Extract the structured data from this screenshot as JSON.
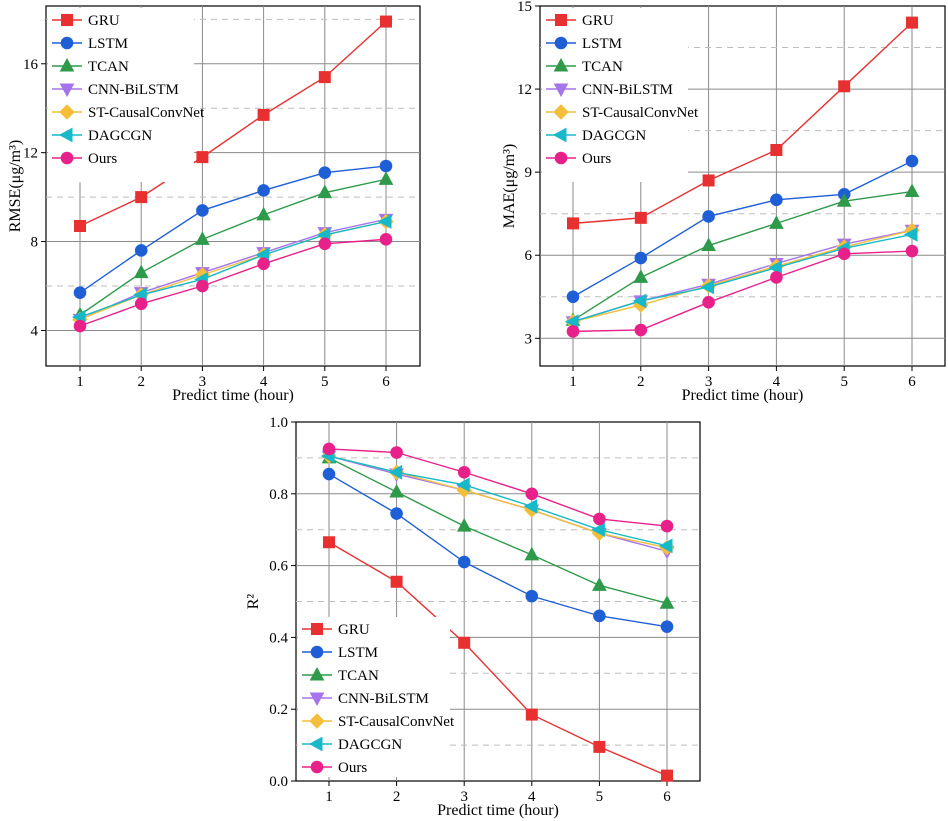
{
  "chart_data": [
    {
      "type": "line",
      "id": "rmse",
      "xlabel": "Predict time (hour)",
      "ylabel": "RMSE(μg/m³)",
      "x": [
        1,
        2,
        3,
        4,
        5,
        6
      ],
      "xticks": [
        "1",
        "2",
        "3",
        "4",
        "5",
        "6"
      ],
      "ylim": [
        2.4,
        18.6
      ],
      "yticks": [
        4,
        8,
        12,
        16
      ],
      "yticklabels": [
        "4",
        "8",
        "12",
        "16"
      ],
      "dashed_gridlines": [
        6,
        10,
        14,
        18
      ],
      "legend_position": "top-left",
      "series": [
        {
          "name": "GRU",
          "color": "#e83030",
          "marker": "square",
          "values": [
            8.7,
            10.0,
            11.8,
            13.7,
            15.4,
            17.9
          ]
        },
        {
          "name": "LSTM",
          "color": "#1f5fd6",
          "marker": "circle",
          "values": [
            5.7,
            7.6,
            9.4,
            10.3,
            11.1,
            11.4
          ]
        },
        {
          "name": "TCAN",
          "color": "#2e9a4a",
          "marker": "triangle-up",
          "values": [
            4.7,
            6.6,
            8.1,
            9.2,
            10.2,
            10.8
          ]
        },
        {
          "name": "CNN-BiLSTM",
          "color": "#a574ea",
          "marker": "triangle-down",
          "values": [
            4.5,
            5.7,
            6.6,
            7.5,
            8.4,
            9.0
          ]
        },
        {
          "name": "ST-CausalConvNet",
          "color": "#f4be3a",
          "marker": "diamond",
          "values": [
            4.5,
            5.6,
            6.5,
            7.4,
            8.3,
            8.9
          ]
        },
        {
          "name": "DAGCGN",
          "color": "#17b9c9",
          "marker": "triangle-left",
          "values": [
            4.6,
            5.6,
            6.3,
            7.4,
            8.3,
            8.9
          ]
        },
        {
          "name": "Ours",
          "color": "#e8208a",
          "marker": "circle",
          "values": [
            4.2,
            5.2,
            6.0,
            7.0,
            7.9,
            8.1
          ]
        }
      ]
    },
    {
      "type": "line",
      "id": "mae",
      "xlabel": "Predict time (hour)",
      "ylabel": "MAE(μg/m³)",
      "x": [
        1,
        2,
        3,
        4,
        5,
        6
      ],
      "xticks": [
        "1",
        "2",
        "3",
        "4",
        "5",
        "6"
      ],
      "ylim": [
        2.0,
        15.0
      ],
      "yticks": [
        3,
        6,
        9,
        12,
        15
      ],
      "yticklabels": [
        "3",
        "6",
        "9",
        "12",
        "15"
      ],
      "dashed_gridlines": [
        4.5,
        7.5,
        10.5,
        13.5
      ],
      "legend_position": "top-left",
      "series": [
        {
          "name": "GRU",
          "color": "#e83030",
          "marker": "square",
          "values": [
            7.15,
            7.35,
            8.7,
            9.8,
            12.1,
            14.4
          ]
        },
        {
          "name": "LSTM",
          "color": "#1f5fd6",
          "marker": "circle",
          "values": [
            4.5,
            5.9,
            7.4,
            8.0,
            8.2,
            9.4
          ]
        },
        {
          "name": "TCAN",
          "color": "#2e9a4a",
          "marker": "triangle-up",
          "values": [
            3.65,
            5.2,
            6.35,
            7.15,
            7.95,
            8.3
          ]
        },
        {
          "name": "CNN-BiLSTM",
          "color": "#a574ea",
          "marker": "triangle-down",
          "values": [
            3.6,
            4.35,
            4.95,
            5.7,
            6.4,
            6.9
          ]
        },
        {
          "name": "ST-CausalConvNet",
          "color": "#f4be3a",
          "marker": "diamond",
          "values": [
            3.6,
            4.2,
            4.9,
            5.6,
            6.3,
            6.9
          ]
        },
        {
          "name": "DAGCGN",
          "color": "#17b9c9",
          "marker": "triangle-left",
          "values": [
            3.6,
            4.35,
            4.85,
            5.55,
            6.25,
            6.75
          ]
        },
        {
          "name": "Ours",
          "color": "#e8208a",
          "marker": "circle",
          "values": [
            3.25,
            3.3,
            4.3,
            5.2,
            6.05,
            6.15
          ]
        }
      ]
    },
    {
      "type": "line",
      "id": "r2",
      "xlabel": "Predict time (hour)",
      "ylabel": "R²",
      "x": [
        1,
        2,
        3,
        4,
        5,
        6
      ],
      "xticks": [
        "1",
        "2",
        "3",
        "4",
        "5",
        "6"
      ],
      "ylim": [
        0.0,
        1.0
      ],
      "yticks": [
        0.0,
        0.2,
        0.4,
        0.6,
        0.8,
        1.0
      ],
      "yticklabels": [
        "0.0",
        "0.2",
        "0.4",
        "0.6",
        "0.8",
        "1.0"
      ],
      "dashed_gridlines": [
        0.1,
        0.3,
        0.5,
        0.7,
        0.9
      ],
      "legend_position": "bottom-left",
      "series": [
        {
          "name": "GRU",
          "color": "#e83030",
          "marker": "square",
          "values": [
            0.665,
            0.555,
            0.385,
            0.185,
            0.095,
            0.015
          ]
        },
        {
          "name": "LSTM",
          "color": "#1f5fd6",
          "marker": "circle",
          "values": [
            0.855,
            0.745,
            0.61,
            0.515,
            0.46,
            0.43
          ]
        },
        {
          "name": "TCAN",
          "color": "#2e9a4a",
          "marker": "triangle-up",
          "values": [
            0.9,
            0.805,
            0.71,
            0.63,
            0.545,
            0.495
          ]
        },
        {
          "name": "CNN-BiLSTM",
          "color": "#a574ea",
          "marker": "triangle-down",
          "values": [
            0.905,
            0.855,
            0.81,
            0.755,
            0.69,
            0.64
          ]
        },
        {
          "name": "ST-CausalConvNet",
          "color": "#f4be3a",
          "marker": "diamond",
          "values": [
            0.905,
            0.86,
            0.81,
            0.755,
            0.69,
            0.65
          ]
        },
        {
          "name": "DAGCGN",
          "color": "#17b9c9",
          "marker": "triangle-left",
          "values": [
            0.905,
            0.86,
            0.825,
            0.765,
            0.7,
            0.655
          ]
        },
        {
          "name": "Ours",
          "color": "#e8208a",
          "marker": "circle",
          "values": [
            0.925,
            0.915,
            0.86,
            0.8,
            0.73,
            0.71
          ]
        }
      ]
    }
  ]
}
